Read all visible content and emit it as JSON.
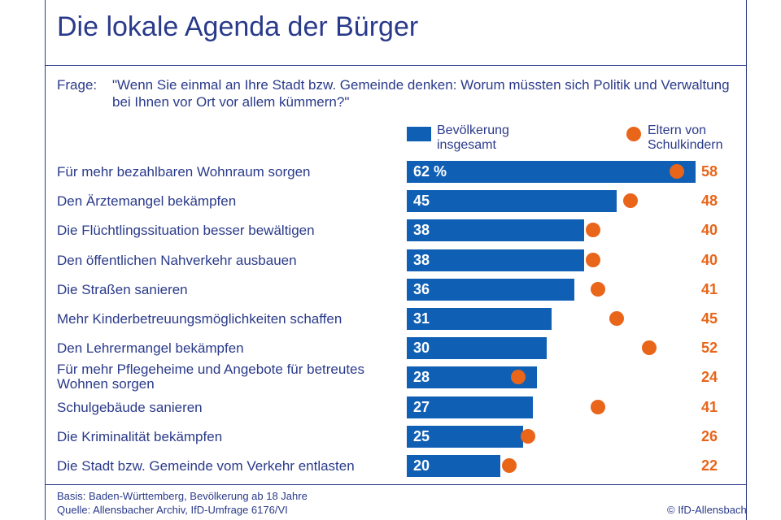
{
  "title": "Die lokale Agenda der Bürger",
  "question_label": "Frage:",
  "question_text": "\"Wenn Sie einmal an Ihre Stadt bzw. Gemeinde denken: Worum müssten sich Politik und Verwaltung bei Ihnen vor Ort vor allem kümmern?\"",
  "colors": {
    "bar": "#0f5fb5",
    "dot": "#e8651a",
    "text": "#2a3a8a"
  },
  "chart_data": {
    "type": "bar",
    "orientation": "horizontal",
    "value_suffix_first": " %",
    "categories": [
      "Für mehr bezahlbaren Wohnraum sorgen",
      "Den Ärztemangel bekämpfen",
      "Die Flüchtlingssituation besser bewältigen",
      "Den öffentlichen Nahverkehr ausbauen",
      "Die Straßen sanieren",
      "Mehr Kinderbetreuungsmöglichkeiten schaffen",
      "Den Lehrermangel bekämpfen",
      "Für mehr Pflegeheime und Angebote für betreutes Wohnen sorgen",
      "Schulgebäude sanieren",
      "Die Kriminalität bekämpfen",
      "Die Stadt bzw. Gemeinde vom Verkehr entlasten"
    ],
    "series": [
      {
        "name": "Bevölkerung insgesamt",
        "mark": "bar",
        "values": [
          62,
          45,
          38,
          38,
          36,
          31,
          30,
          28,
          27,
          25,
          20
        ]
      },
      {
        "name": "Eltern von Schulkindern",
        "mark": "dot",
        "values": [
          58,
          48,
          40,
          40,
          41,
          45,
          52,
          24,
          41,
          26,
          22
        ]
      }
    ],
    "xlim": [
      0,
      62
    ],
    "legend_placement": "top",
    "grid": false
  },
  "footer": {
    "basis": "Basis: Baden-Württemberg, Bevölkerung ab 18 Jahre",
    "source": "Quelle: Allensbacher Archiv, IfD-Umfrage 6176/VI",
    "copyright": "© IfD-Allensbach"
  }
}
